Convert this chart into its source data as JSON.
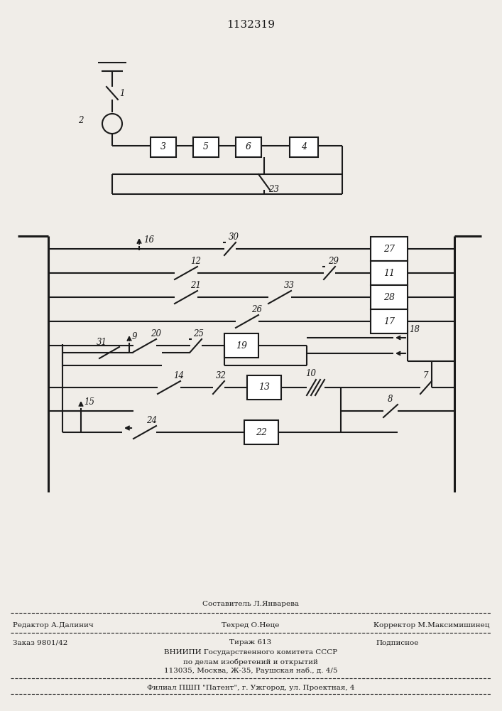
{
  "title": "1132319",
  "bg_color": "#f0ede8",
  "line_color": "#1a1a1a",
  "footer": {
    "composer": "Составитель Л.Январева",
    "editor": "Редактор А.Далинич",
    "techred": "Техред О.Неце",
    "corrector": "Корректор М.Максимишинец",
    "order": "Заказ 9801/42",
    "tirazh": "Тираж 613",
    "podp": "Подписное",
    "line3": "ВНИИПИ Государственного комитета СССР",
    "line4": "по делам изобретений и открытий",
    "line5": "113035, Москва, Ж-35, Раушская наб., д. 4/5",
    "line6": "Филиал ПШП \"Патент\", г. Ужгород, ул. Проектная, 4"
  }
}
